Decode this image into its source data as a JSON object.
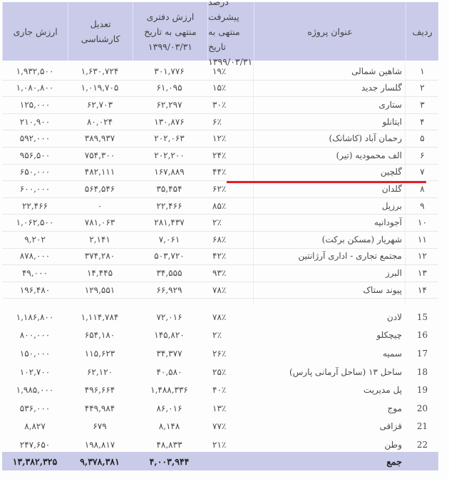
{
  "headers": {
    "row_no": "ردیف",
    "title": "عنوان پروژه",
    "progress": "درصد پیشرفت\nمنتهی به تاریخ\n۱۳۹۹/۰۳/۳۱",
    "book_value": "ارزش دفتری\nمنتهی به تاریخ\n۱۳۹۹/۰۳/۳۱",
    "adjustment": "تعدیل\nکارشناسی",
    "current_value": "ارزش جاری"
  },
  "rows_top": [
    {
      "no": "۱",
      "title": "شاهین شمالی",
      "pct": "۱۹٪",
      "book": "۳۰۱,۷۷۶",
      "adj": "۱,۶۳۰,۷۲۴",
      "cur": "۱,۹۳۲,۵۰۰"
    },
    {
      "no": "۲",
      "title": "گلسار جدید",
      "pct": "۱۵٪",
      "book": "۶۱,۰۹۵",
      "adj": "۱,۰۱۹,۷۰۵",
      "cur": "۱,۰۸۰,۸۰۰"
    },
    {
      "no": "۳",
      "title": "ستاری",
      "pct": "۳۰٪",
      "book": "۶۲,۲۹۷",
      "adj": "۶۲,۷۰۳",
      "cur": "۱۲۵,۰۰۰"
    },
    {
      "no": "۴",
      "title": "ایتانلو",
      "pct": "۶٪",
      "book": "۱۳۰,۸۷۶",
      "adj": "۸۰,۰۲۴",
      "cur": "۲۱۰,۹۰۰"
    },
    {
      "no": "۵",
      "title": "رحمان آباد (کاشانک)",
      "pct": "۱۲٪",
      "book": "۲۰۲,۰۶۳",
      "adj": "۳۸۹,۹۳۷",
      "cur": "۵۹۲,۰۰۰"
    },
    {
      "no": "۶",
      "title": "الف محمودیه (تیر)",
      "pct": "۲۴٪",
      "book": "۲۰۲,۲۰۰",
      "adj": "۷۵۴,۳۰۰",
      "cur": "۹۵۶,۵۰۰"
    },
    {
      "no": "۷",
      "title": "گلچین",
      "pct": "۴۴٪",
      "book": "۱۶۷,۸۸۹",
      "adj": "۴۸۲,۱۱۱",
      "cur": "۶۵۰,۰۰۰"
    },
    {
      "no": "۸",
      "title": "گلدان",
      "pct": "۶۲٪",
      "book": "۳۵,۴۵۴",
      "adj": "۵۶۴,۵۴۶",
      "cur": "۶۰۰,۰۰۰"
    },
    {
      "no": "۹",
      "title": "برزیل",
      "pct": "۸۵٪",
      "book": "۲۲,۴۶۶",
      "adj": "۰",
      "cur": "۲۲,۴۶۶"
    },
    {
      "no": "۱۰",
      "title": "آجودانیه",
      "pct": "۲٪",
      "book": "۲۸۱,۴۳۷",
      "adj": "۷۸۱,۰۶۳",
      "cur": "۱,۰۶۲,۵۰۰"
    },
    {
      "no": "۱۱",
      "title": "شهریار (مسکن برکت)",
      "pct": "۶۸٪",
      "book": "۷,۰۶۱",
      "adj": "۲,۱۴۱",
      "cur": "۹,۲۰۲"
    },
    {
      "no": "۱۲",
      "title": "مجتمع تجاری - اداری آرژانتین",
      "pct": "۴۲٪",
      "book": "۵۰۳,۷۲۰",
      "adj": "۳۷۴,۲۸۰",
      "cur": "۸۷۸,۰۰۰"
    },
    {
      "no": "۱۳",
      "title": "البرز",
      "pct": "۹۳٪",
      "book": "۳۴,۵۵۵",
      "adj": "۱۴,۴۴۵",
      "cur": "۴۹,۰۰۰"
    },
    {
      "no": "۱۴",
      "title": "پیوند  ستاک",
      "pct": "۷۸٪",
      "book": "۶۶,۹۲۹",
      "adj": "۱۲۹,۵۵۱",
      "cur": "۱۹۶,۴۸۰"
    }
  ],
  "rows_bottom": [
    {
      "no": "15",
      "title": "لادن",
      "pct": "۷۸٪",
      "book": "۷۲,۰۱۶",
      "adj": "۱,۱۱۴,۷۸۴",
      "cur": "۱,۱۸۶,۸۰۰"
    },
    {
      "no": "16",
      "title": "چیچکلو",
      "pct": "۲٪",
      "book": "۱۴۵,۸۲۰",
      "adj": "۶۵۴,۱۸۰",
      "cur": "۸۰۰,۰۰۰"
    },
    {
      "no": "17",
      "title": "سمیه",
      "pct": "۲۶٪",
      "book": "۳۴,۳۷۷",
      "adj": "۱۱۵,۶۲۳",
      "cur": "۱۵۰,۰۰۰"
    },
    {
      "no": "18",
      "title": "ساحل ۱۳ (ساحل آرمانی پارس)",
      "pct": "۲۵٪",
      "book": "۴۰,۵۸۰",
      "adj": "۶۲,۱۲۰",
      "cur": "۱۰۲,۷۰۰"
    },
    {
      "no": "19",
      "title": "پل مدیریت",
      "pct": "۴۰٪",
      "book": "۱,۴۸۸,۳۳۶",
      "adj": "۴۹۶,۶۶۴",
      "cur": "۱,۹۸۵,۰۰۰"
    },
    {
      "no": "20",
      "title": "موج",
      "pct": "۱۳٪",
      "book": "۸۶,۰۱۶",
      "adj": "۴۴۹,۹۸۴",
      "cur": "۵۳۶,۰۰۰"
    },
    {
      "no": "21",
      "title": "قزاقی",
      "pct": "۷۷٪",
      "book": "۸,۱۴۸",
      "adj": "۶۷۹",
      "cur": "۸,۸۲۷"
    },
    {
      "no": "22",
      "title": "وطن",
      "pct": "۲۱٪",
      "book": "۴۸,۸۳۳",
      "adj": "۱۹۸,۸۱۷",
      "cur": "۲۴۷,۶۵۰"
    }
  ],
  "total": {
    "label": "جمع",
    "book": "۴,۰۰۳,۹۴۴",
    "adj": "۹,۳۷۸,۳۸۱",
    "cur": "۱۳,۳۸۲,۳۲۵"
  },
  "colors": {
    "header_bg": "#c9cbe9",
    "annotation_line": "#e0202a"
  }
}
